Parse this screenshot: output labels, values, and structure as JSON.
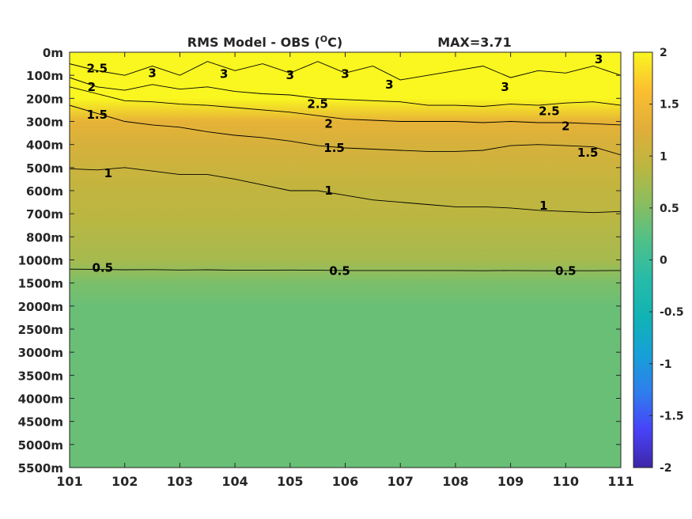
{
  "chart_data": {
    "type": "heatmap",
    "title": "RMS Model - OBS (",
    "title_unit_sup": "O",
    "title_unit_end": "C)",
    "max_label": "MAX=3.71",
    "x_ticks": [
      "101",
      "102",
      "103",
      "104",
      "105",
      "106",
      "107",
      "108",
      "109",
      "110",
      "111"
    ],
    "y_ticks": [
      "0m",
      "100m",
      "200m",
      "300m",
      "400m",
      "500m",
      "600m",
      "700m",
      "800m",
      "1000m",
      "1500m",
      "2000m",
      "2500m",
      "3000m",
      "3500m",
      "4000m",
      "4500m",
      "5000m",
      "5500m"
    ],
    "colorbar": {
      "range": [
        -2,
        2
      ],
      "ticks": [
        "2",
        "1.5",
        "1",
        "0.5",
        "0",
        "-0.5",
        "-1",
        "-1.5",
        "-2"
      ],
      "colormap": [
        "#3e26a8",
        "#4743f8",
        "#2f7eed",
        "#16a0d7",
        "#11b3b4",
        "#27bba8",
        "#4fc089",
        "#8abe5f",
        "#bdb640",
        "#e2ae39",
        "#fbbf30",
        "#f9f620"
      ]
    },
    "fill_bands": [
      {
        "depth": "0m",
        "value": 2.0
      },
      {
        "depth": "200m",
        "value": 2.0
      },
      {
        "depth": "300m",
        "value": 1.35
      },
      {
        "depth": "400m",
        "value": 1.15
      },
      {
        "depth": "500m",
        "value": 1.05
      },
      {
        "depth": "600m",
        "value": 0.95
      },
      {
        "depth": "700m",
        "value": 0.9
      },
      {
        "depth": "800m",
        "value": 0.82
      },
      {
        "depth": "1000m",
        "value": 0.75
      },
      {
        "depth": "1500m",
        "value": 0.45
      },
      {
        "depth": "2000m",
        "value": 0.35
      },
      {
        "depth": "5500m",
        "value": 0.35
      }
    ],
    "contours": [
      {
        "level": "3",
        "x": [
          101.0,
          101.5,
          102.0,
          102.5,
          103.0,
          103.5,
          104.0,
          104.5,
          105.0,
          105.5,
          106.0,
          106.5,
          107.0,
          107.5,
          108.0,
          108.5,
          109.0,
          109.5,
          110.0,
          110.5,
          111.0
        ],
        "depth": [
          50,
          80,
          100,
          60,
          100,
          40,
          80,
          50,
          90,
          40,
          90,
          60,
          120,
          100,
          80,
          60,
          110,
          80,
          90,
          60,
          100
        ],
        "labels": [
          {
            "x": 102.5,
            "depth": 90
          },
          {
            "x": 103.8,
            "depth": 95
          },
          {
            "x": 105.0,
            "depth": 100
          },
          {
            "x": 106.0,
            "depth": 95
          },
          {
            "x": 106.8,
            "depth": 140
          },
          {
            "x": 108.9,
            "depth": 150
          },
          {
            "x": 110.6,
            "depth": 30
          }
        ]
      },
      {
        "level": "2.5",
        "x": [
          101.0,
          101.5,
          102.0,
          102.5,
          103.0,
          103.5,
          104.0,
          104.5,
          105.0,
          105.5,
          106.0,
          106.5,
          107.0,
          107.5,
          108.0,
          108.5,
          109.0,
          109.5,
          110.0,
          110.5,
          111.0
        ],
        "depth": [
          110,
          150,
          165,
          140,
          160,
          150,
          170,
          180,
          185,
          200,
          205,
          210,
          215,
          230,
          230,
          235,
          225,
          230,
          220,
          215,
          230
        ],
        "labels": [
          {
            "x": 101.5,
            "depth": 70
          },
          {
            "x": 105.5,
            "depth": 225
          },
          {
            "x": 109.7,
            "depth": 255
          }
        ]
      },
      {
        "level": "2",
        "x": [
          101.0,
          101.5,
          102.0,
          102.5,
          103.0,
          103.5,
          104.0,
          104.5,
          105.0,
          105.5,
          106.0,
          106.5,
          107.0,
          107.5,
          108.0,
          108.5,
          109.0,
          109.5,
          110.0,
          110.5,
          111.0
        ],
        "depth": [
          150,
          180,
          210,
          215,
          225,
          230,
          240,
          250,
          260,
          275,
          290,
          295,
          300,
          300,
          300,
          305,
          300,
          305,
          305,
          310,
          315
        ],
        "labels": [
          {
            "x": 101.4,
            "depth": 150
          },
          {
            "x": 105.7,
            "depth": 310
          },
          {
            "x": 110.0,
            "depth": 320
          }
        ]
      },
      {
        "level": "1.5",
        "x": [
          101.0,
          101.5,
          102.0,
          102.5,
          103.0,
          103.5,
          104.0,
          104.5,
          105.0,
          105.5,
          106.0,
          106.5,
          107.0,
          107.5,
          108.0,
          108.5,
          109.0,
          109.5,
          110.0,
          110.5,
          111.0
        ],
        "depth": [
          230,
          265,
          300,
          315,
          325,
          345,
          360,
          370,
          385,
          405,
          415,
          420,
          425,
          430,
          430,
          425,
          405,
          400,
          405,
          410,
          445
        ],
        "labels": [
          {
            "x": 101.5,
            "depth": 270
          },
          {
            "x": 105.8,
            "depth": 415
          },
          {
            "x": 110.4,
            "depth": 435
          }
        ]
      },
      {
        "level": "1",
        "x": [
          101.0,
          101.5,
          102.0,
          102.5,
          103.0,
          103.5,
          104.0,
          104.5,
          105.0,
          105.5,
          106.0,
          106.5,
          107.0,
          107.5,
          108.0,
          108.5,
          109.0,
          109.5,
          110.0,
          110.5,
          111.0
        ],
        "depth": [
          505,
          510,
          500,
          515,
          530,
          530,
          550,
          575,
          600,
          600,
          620,
          640,
          650,
          660,
          670,
          670,
          675,
          685,
          690,
          695,
          690
        ],
        "labels": [
          {
            "x": 101.7,
            "depth": 525
          },
          {
            "x": 105.7,
            "depth": 600
          },
          {
            "x": 109.6,
            "depth": 665
          }
        ]
      },
      {
        "level": "0.5",
        "x": [
          101.0,
          101.5,
          102.0,
          102.5,
          103.0,
          103.5,
          104.0,
          104.5,
          105.0,
          105.5,
          106.0,
          106.5,
          107.0,
          107.5,
          108.0,
          108.5,
          109.0,
          109.5,
          110.0,
          110.5,
          111.0
        ],
        "depth": [
          1200,
          1205,
          1215,
          1210,
          1220,
          1215,
          1225,
          1225,
          1220,
          1225,
          1230,
          1230,
          1230,
          1230,
          1230,
          1235,
          1230,
          1235,
          1235,
          1235,
          1230
        ],
        "labels": [
          {
            "x": 101.6,
            "depth": 1170
          },
          {
            "x": 105.9,
            "depth": 1240
          },
          {
            "x": 110.0,
            "depth": 1240
          }
        ]
      }
    ]
  }
}
